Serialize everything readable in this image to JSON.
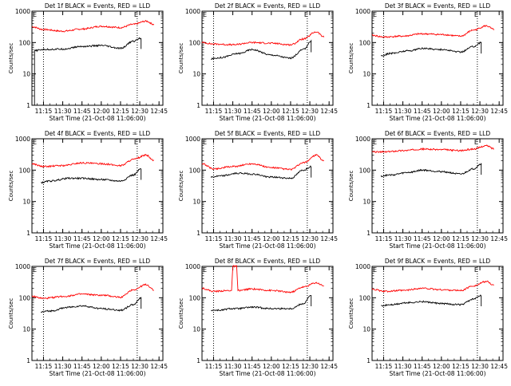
{
  "figure": {
    "ylabel": "Counts/sec",
    "xlabel_template": "Start Time (21-Oct-08 11:06:00)",
    "time_ticks": [
      "11:15",
      "11:30",
      "11:45",
      "12:00",
      "12:15",
      "12:30",
      "12:45"
    ],
    "y_ticks": [
      "1",
      "10",
      "100",
      "1000"
    ],
    "corner_marker": "E",
    "colors": {
      "events": "#000000",
      "lld": "#ff0000",
      "axis": "#000000",
      "background": "#ffffff"
    }
  },
  "chart_data": [
    {
      "type": "line",
      "title": "Det 1f BLACK = Events, RED = LLD",
      "xlabel": "Start Time (21-Oct-08 11:06:00)",
      "ylabel": "Counts/sec",
      "ylim": [
        1,
        1000
      ],
      "yscale": "log",
      "series": [
        {
          "name": "LLD",
          "color": "#ff0000",
          "x": [
            "11:06",
            "11:15",
            "11:30",
            "11:45",
            "12:00",
            "12:15",
            "12:25",
            "12:35",
            "12:41"
          ],
          "y": [
            320,
            260,
            230,
            270,
            330,
            300,
            380,
            480,
            380
          ]
        },
        {
          "name": "Events",
          "color": "#000000",
          "x": [
            "11:08",
            "11:15",
            "11:30",
            "11:45",
            "12:00",
            "12:15",
            "12:25",
            "12:31"
          ],
          "y": [
            55,
            60,
            62,
            75,
            80,
            65,
            110,
            140
          ]
        }
      ]
    },
    {
      "type": "line",
      "title": "Det 2f BLACK = Events, RED = LLD",
      "xlabel": "Start Time (21-Oct-08 11:06:00)",
      "ylabel": "Counts/sec",
      "ylim": [
        1,
        1000
      ],
      "yscale": "log",
      "series": [
        {
          "name": "LLD",
          "color": "#ff0000",
          "x": [
            "11:06",
            "11:15",
            "11:30",
            "11:45",
            "12:00",
            "12:15",
            "12:25",
            "12:35",
            "12:41"
          ],
          "y": [
            100,
            90,
            85,
            100,
            95,
            85,
            130,
            220,
            150
          ]
        },
        {
          "name": "Events",
          "color": "#000000",
          "x": [
            "11:13",
            "11:20",
            "11:35",
            "11:45",
            "12:00",
            "12:15",
            "12:25",
            "12:31"
          ],
          "y": [
            30,
            33,
            45,
            60,
            40,
            32,
            60,
            110
          ]
        }
      ]
    },
    {
      "type": "line",
      "title": "Det 3f BLACK = Events, RED = LLD",
      "xlabel": "Start Time (21-Oct-08 11:06:00)",
      "ylabel": "Counts/sec",
      "ylim": [
        1,
        1000
      ],
      "yscale": "log",
      "series": [
        {
          "name": "LLD",
          "color": "#ff0000",
          "x": [
            "11:06",
            "11:15",
            "11:30",
            "11:45",
            "12:00",
            "12:15",
            "12:25",
            "12:35",
            "12:41"
          ],
          "y": [
            170,
            150,
            160,
            190,
            180,
            160,
            250,
            340,
            260
          ]
        },
        {
          "name": "Events",
          "color": "#000000",
          "x": [
            "11:13",
            "11:20",
            "11:35",
            "11:45",
            "12:00",
            "12:15",
            "12:25",
            "12:31"
          ],
          "y": [
            38,
            45,
            55,
            65,
            60,
            50,
            75,
            100
          ]
        }
      ]
    },
    {
      "type": "line",
      "title": "Det 4f BLACK = Events, RED = LLD",
      "xlabel": "Start Time (21-Oct-08 11:06:00)",
      "ylabel": "Counts/sec",
      "ylim": [
        1,
        1000
      ],
      "yscale": "log",
      "series": [
        {
          "name": "LLD",
          "color": "#ff0000",
          "x": [
            "11:06",
            "11:15",
            "11:30",
            "11:45",
            "12:00",
            "12:15",
            "12:25",
            "12:35",
            "12:41"
          ],
          "y": [
            160,
            130,
            140,
            170,
            160,
            140,
            220,
            300,
            200
          ]
        },
        {
          "name": "Events",
          "color": "#000000",
          "x": [
            "11:13",
            "11:20",
            "11:35",
            "11:45",
            "12:00",
            "12:15",
            "12:25",
            "12:31"
          ],
          "y": [
            40,
            45,
            55,
            55,
            50,
            45,
            70,
            110
          ]
        }
      ]
    },
    {
      "type": "line",
      "title": "Det 5f BLACK = Events, RED = LLD",
      "xlabel": "Start Time (21-Oct-08 11:06:00)",
      "ylabel": "Counts/sec",
      "ylim": [
        1,
        1000
      ],
      "yscale": "log",
      "series": [
        {
          "name": "LLD",
          "color": "#ff0000",
          "x": [
            "11:06",
            "11:15",
            "11:30",
            "11:45",
            "12:00",
            "12:15",
            "12:25",
            "12:35",
            "12:41"
          ],
          "y": [
            160,
            110,
            130,
            160,
            120,
            105,
            170,
            300,
            200
          ]
        },
        {
          "name": "Events",
          "color": "#000000",
          "x": [
            "11:13",
            "11:20",
            "11:35",
            "11:45",
            "12:00",
            "12:15",
            "12:25",
            "12:31"
          ],
          "y": [
            60,
            65,
            80,
            75,
            60,
            55,
            100,
            130
          ]
        }
      ]
    },
    {
      "type": "line",
      "title": "Det 6f BLACK = Events, RED = LLD",
      "xlabel": "Start Time (21-Oct-08 11:06:00)",
      "ylabel": "Counts/sec",
      "ylim": [
        1,
        1000
      ],
      "yscale": "log",
      "series": [
        {
          "name": "LLD",
          "color": "#ff0000",
          "x": [
            "11:06",
            "11:15",
            "11:30",
            "11:45",
            "12:00",
            "12:15",
            "12:25",
            "12:35",
            "12:41"
          ],
          "y": [
            380,
            380,
            420,
            470,
            450,
            420,
            470,
            600,
            480
          ]
        },
        {
          "name": "Events",
          "color": "#000000",
          "x": [
            "11:13",
            "11:20",
            "11:35",
            "11:45",
            "12:00",
            "12:15",
            "12:25",
            "12:31"
          ],
          "y": [
            65,
            70,
            85,
            100,
            90,
            75,
            110,
            160
          ]
        }
      ]
    },
    {
      "type": "line",
      "title": "Det 7f BLACK = Events, RED = LLD",
      "xlabel": "Start Time (21-Oct-08 11:06:00)",
      "ylabel": "Counts/sec",
      "ylim": [
        1,
        1000
      ],
      "yscale": "log",
      "series": [
        {
          "name": "LLD",
          "color": "#ff0000",
          "x": [
            "11:06",
            "11:15",
            "11:30",
            "11:45",
            "12:00",
            "12:15",
            "12:25",
            "12:35",
            "12:41"
          ],
          "y": [
            110,
            95,
            110,
            130,
            120,
            105,
            180,
            260,
            180
          ]
        },
        {
          "name": "Events",
          "color": "#000000",
          "x": [
            "11:13",
            "11:20",
            "11:35",
            "11:45",
            "12:00",
            "12:15",
            "12:25",
            "12:31"
          ],
          "y": [
            35,
            38,
            50,
            55,
            45,
            40,
            60,
            100
          ]
        }
      ]
    },
    {
      "type": "line",
      "title": "Det 8f BLACK = Events, RED = LLD",
      "xlabel": "Start Time (21-Oct-08 11:06:00)",
      "ylabel": "Counts/sec",
      "ylim": [
        1,
        1000
      ],
      "yscale": "log",
      "series": [
        {
          "name": "LLD",
          "color": "#ff0000",
          "x": [
            "11:06",
            "11:15",
            "11:29",
            "11:30",
            "11:33",
            "11:34",
            "11:45",
            "12:00",
            "12:15",
            "12:25",
            "12:35",
            "12:41"
          ],
          "y": [
            200,
            160,
            170,
            1000,
            1000,
            170,
            190,
            170,
            150,
            220,
            300,
            240
          ]
        },
        {
          "name": "Events",
          "color": "#000000",
          "x": [
            "11:13",
            "11:20",
            "11:29",
            "11:34",
            "11:45",
            "12:00",
            "12:15",
            "12:25",
            "12:31"
          ],
          "y": [
            40,
            40,
            45,
            45,
            50,
            45,
            45,
            65,
            120
          ]
        }
      ]
    },
    {
      "type": "line",
      "title": "Det 9f BLACK = Events, RED = LLD",
      "xlabel": "Start Time (21-Oct-08 11:06:00)",
      "ylabel": "Counts/sec",
      "ylim": [
        1,
        1000
      ],
      "yscale": "log",
      "series": [
        {
          "name": "LLD",
          "color": "#ff0000",
          "x": [
            "11:06",
            "11:15",
            "11:30",
            "11:45",
            "12:00",
            "12:15",
            "12:25",
            "12:35",
            "12:41"
          ],
          "y": [
            190,
            160,
            170,
            200,
            180,
            170,
            240,
            330,
            250
          ]
        },
        {
          "name": "Events",
          "color": "#000000",
          "x": [
            "11:13",
            "11:20",
            "11:35",
            "11:45",
            "12:00",
            "12:15",
            "12:25",
            "12:31"
          ],
          "y": [
            55,
            60,
            70,
            75,
            65,
            60,
            90,
            120
          ]
        }
      ]
    }
  ]
}
